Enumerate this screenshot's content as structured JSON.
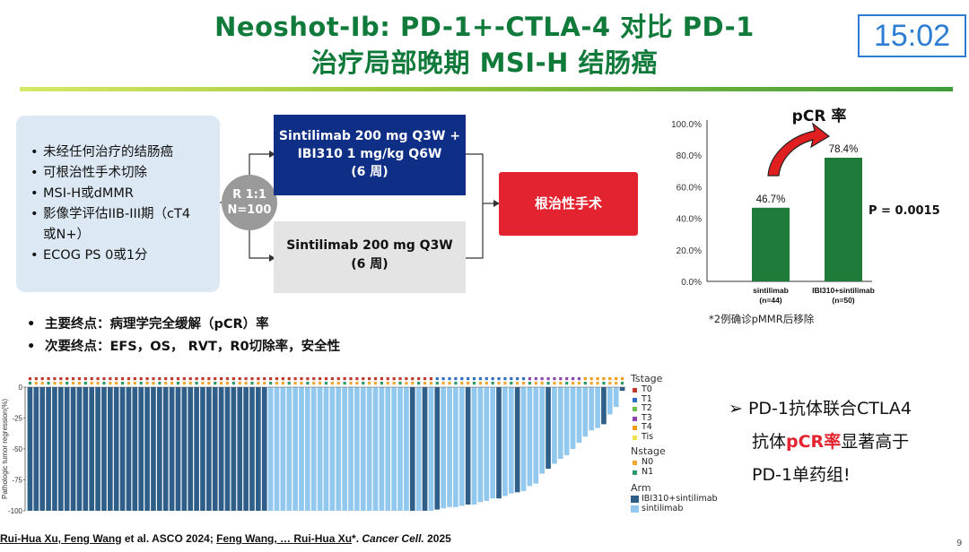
{
  "header": {
    "title_line1": "Neoshot-Ib: PD-1+-CTLA-4 对比 PD-1",
    "title_line2": "治疗局部晚期 MSI-H 结肠癌",
    "timer": "15:02"
  },
  "design": {
    "criteria": [
      "未经任何治疗的结肠癌",
      "可根治性手术切除",
      "MSI-H或dMMR",
      "影像学评估IIB-III期（cT4",
      "或N+）",
      "ECOG PS 0或1分"
    ],
    "randomization": [
      "R 1:1",
      "N=100"
    ],
    "arm1": [
      "Sintilimab 200 mg Q3W +",
      "IBI310 1 mg/kg Q6W",
      "(6 周)"
    ],
    "arm2": [
      "Sintilimab 200 mg Q3W",
      "(6 周)"
    ],
    "surgery": "根治性手术"
  },
  "endpoints": {
    "primary": "主要终点：病理学完全缓解（pCR）率",
    "secondary": "次要终点：EFS，OS， RVT，R0切除率，安全性"
  },
  "conclusion": {
    "line1": "PD-1抗体联合CTLA4",
    "line2_a": "抗体",
    "line2_b": "pCR率",
    "line2_c": "显著高于",
    "line3": "PD-1单药组!"
  },
  "citation": {
    "part1": "Rui-Hua Xu, Feng Wang",
    "part2": " et al. ASCO 2024;  ",
    "part3": "Feng Wang, … Rui-Hua Xu",
    "part4": "*. ",
    "part5": "Cancer Cell.",
    "part6": " 2025"
  },
  "page_number": "9",
  "colors": {
    "title_green": "#0f7a3a",
    "bar_green": "#1e7b3a",
    "arm1_blue": "#0f2f87",
    "surgery_red": "#e32330",
    "wf_combo": "#2f5f88",
    "wf_mono": "#92c8ee"
  },
  "chart_data": [
    {
      "type": "bar",
      "title": "pCR 率",
      "categories": [
        "sintilimab\n(n=44)",
        "IBI310+sintilimab\n(n=50)"
      ],
      "category_lines": [
        [
          "sintilimab",
          "(n=44)"
        ],
        [
          "IBI310+sintilimab",
          "(n=50)"
        ]
      ],
      "values": [
        46.7,
        78.4
      ],
      "value_labels": [
        "46.7%",
        "78.4%"
      ],
      "yticks": [
        "0.0%",
        "20.0%",
        "40.0%",
        "60.0%",
        "80.0%",
        "100.0%"
      ],
      "ylim": [
        0,
        100
      ],
      "annotation": "P = 0.0015",
      "note": "*2例确诊pMMR后移除"
    },
    {
      "type": "bar",
      "subtype": "waterfall",
      "ylabel": "Pathologic tumor regression(%)",
      "yticks": [
        "0",
        "-25",
        "-50",
        "-75",
        "-100"
      ],
      "ylim": [
        -100,
        0
      ],
      "legend": {
        "tstage_title": "Tstage",
        "tstage": [
          {
            "name": "T0",
            "color": "#c0392b"
          },
          {
            "name": "T1",
            "color": "#2e6fc0"
          },
          {
            "name": "T2",
            "color": "#6cbf4a"
          },
          {
            "name": "T3",
            "color": "#8e44ad"
          },
          {
            "name": "T4",
            "color": "#f39c12"
          },
          {
            "name": "Tis",
            "color": "#f4e04d"
          }
        ],
        "nstage_title": "Nstage",
        "nstage": [
          {
            "name": "N0",
            "color": "#f0a830"
          },
          {
            "name": "N1",
            "color": "#2a9a6a"
          }
        ],
        "arm_title": "Arm",
        "arms": [
          {
            "name": "IBI310+sintilimab",
            "color": "#2f5f88"
          },
          {
            "name": "sintilimab",
            "color": "#92c8ee"
          }
        ]
      },
      "bars": [
        {
          "arm": "IBI310+sintilimab",
          "value": -100
        },
        {
          "arm": "IBI310+sintilimab",
          "value": -100
        },
        {
          "arm": "IBI310+sintilimab",
          "value": -100
        },
        {
          "arm": "IBI310+sintilimab",
          "value": -100
        },
        {
          "arm": "IBI310+sintilimab",
          "value": -100
        },
        {
          "arm": "IBI310+sintilimab",
          "value": -100
        },
        {
          "arm": "IBI310+sintilimab",
          "value": -100
        },
        {
          "arm": "IBI310+sintilimab",
          "value": -100
        },
        {
          "arm": "IBI310+sintilimab",
          "value": -100
        },
        {
          "arm": "IBI310+sintilimab",
          "value": -100
        },
        {
          "arm": "IBI310+sintilimab",
          "value": -100
        },
        {
          "arm": "IBI310+sintilimab",
          "value": -100
        },
        {
          "arm": "IBI310+sintilimab",
          "value": -100
        },
        {
          "arm": "IBI310+sintilimab",
          "value": -100
        },
        {
          "arm": "IBI310+sintilimab",
          "value": -100
        },
        {
          "arm": "IBI310+sintilimab",
          "value": -100
        },
        {
          "arm": "IBI310+sintilimab",
          "value": -100
        },
        {
          "arm": "IBI310+sintilimab",
          "value": -100
        },
        {
          "arm": "IBI310+sintilimab",
          "value": -100
        },
        {
          "arm": "IBI310+sintilimab",
          "value": -100
        },
        {
          "arm": "IBI310+sintilimab",
          "value": -100
        },
        {
          "arm": "IBI310+sintilimab",
          "value": -100
        },
        {
          "arm": "IBI310+sintilimab",
          "value": -100
        },
        {
          "arm": "IBI310+sintilimab",
          "value": -100
        },
        {
          "arm": "IBI310+sintilimab",
          "value": -100
        },
        {
          "arm": "IBI310+sintilimab",
          "value": -100
        },
        {
          "arm": "IBI310+sintilimab",
          "value": -100
        },
        {
          "arm": "IBI310+sintilimab",
          "value": -100
        },
        {
          "arm": "IBI310+sintilimab",
          "value": -100
        },
        {
          "arm": "IBI310+sintilimab",
          "value": -100
        },
        {
          "arm": "IBI310+sintilimab",
          "value": -100
        },
        {
          "arm": "IBI310+sintilimab",
          "value": -100
        },
        {
          "arm": "IBI310+sintilimab",
          "value": -100
        },
        {
          "arm": "IBI310+sintilimab",
          "value": -100
        },
        {
          "arm": "IBI310+sintilimab",
          "value": -100
        },
        {
          "arm": "IBI310+sintilimab",
          "value": -100
        },
        {
          "arm": "IBI310+sintilimab",
          "value": -100
        },
        {
          "arm": "IBI310+sintilimab",
          "value": -100
        },
        {
          "arm": "IBI310+sintilimab",
          "value": -100
        },
        {
          "arm": "sintilimab",
          "value": -100
        },
        {
          "arm": "sintilimab",
          "value": -100
        },
        {
          "arm": "sintilimab",
          "value": -100
        },
        {
          "arm": "sintilimab",
          "value": -100
        },
        {
          "arm": "sintilimab",
          "value": -100
        },
        {
          "arm": "sintilimab",
          "value": -100
        },
        {
          "arm": "sintilimab",
          "value": -100
        },
        {
          "arm": "sintilimab",
          "value": -100
        },
        {
          "arm": "sintilimab",
          "value": -100
        },
        {
          "arm": "sintilimab",
          "value": -100
        },
        {
          "arm": "sintilimab",
          "value": -100
        },
        {
          "arm": "sintilimab",
          "value": -100
        },
        {
          "arm": "sintilimab",
          "value": -100
        },
        {
          "arm": "sintilimab",
          "value": -100
        },
        {
          "arm": "sintilimab",
          "value": -100
        },
        {
          "arm": "sintilimab",
          "value": -100
        },
        {
          "arm": "sintilimab",
          "value": -100
        },
        {
          "arm": "sintilimab",
          "value": -100
        },
        {
          "arm": "sintilimab",
          "value": -100
        },
        {
          "arm": "sintilimab",
          "value": -100
        },
        {
          "arm": "sintilimab",
          "value": -100
        },
        {
          "arm": "sintilimab",
          "value": -100
        },
        {
          "arm": "sintilimab",
          "value": -100
        },
        {
          "arm": "IBI310+sintilimab",
          "value": -100
        },
        {
          "arm": "sintilimab",
          "value": -100
        },
        {
          "arm": "IBI310+sintilimab",
          "value": -100
        },
        {
          "arm": "sintilimab",
          "value": -100
        },
        {
          "arm": "IBI310+sintilimab",
          "value": -99
        },
        {
          "arm": "sintilimab",
          "value": -98
        },
        {
          "arm": "sintilimab",
          "value": -97
        },
        {
          "arm": "sintilimab",
          "value": -97
        },
        {
          "arm": "sintilimab",
          "value": -96
        },
        {
          "arm": "IBI310+sintilimab",
          "value": -95
        },
        {
          "arm": "sintilimab",
          "value": -95
        },
        {
          "arm": "sintilimab",
          "value": -93
        },
        {
          "arm": "sintilimab",
          "value": -92
        },
        {
          "arm": "sintilimab",
          "value": -90
        },
        {
          "arm": "IBI310+sintilimab",
          "value": -90
        },
        {
          "arm": "sintilimab",
          "value": -88
        },
        {
          "arm": "sintilimab",
          "value": -86
        },
        {
          "arm": "IBI310+sintilimab",
          "value": -85
        },
        {
          "arm": "sintilimab",
          "value": -84
        },
        {
          "arm": "sintilimab",
          "value": -80
        },
        {
          "arm": "sintilimab",
          "value": -78
        },
        {
          "arm": "sintilimab",
          "value": -70
        },
        {
          "arm": "IBI310+sintilimab",
          "value": -66
        },
        {
          "arm": "sintilimab",
          "value": -62
        },
        {
          "arm": "sintilimab",
          "value": -58
        },
        {
          "arm": "sintilimab",
          "value": -55
        },
        {
          "arm": "sintilimab",
          "value": -50
        },
        {
          "arm": "sintilimab",
          "value": -45
        },
        {
          "arm": "sintilimab",
          "value": -40
        },
        {
          "arm": "sintilimab",
          "value": -35
        },
        {
          "arm": "sintilimab",
          "value": -33
        },
        {
          "arm": "IBI310+sintilimab",
          "value": -30
        },
        {
          "arm": "sintilimab",
          "value": -22
        },
        {
          "arm": "sintilimab",
          "value": -16
        },
        {
          "arm": "IBI310+sintilimab",
          "value": -3
        }
      ]
    }
  ]
}
